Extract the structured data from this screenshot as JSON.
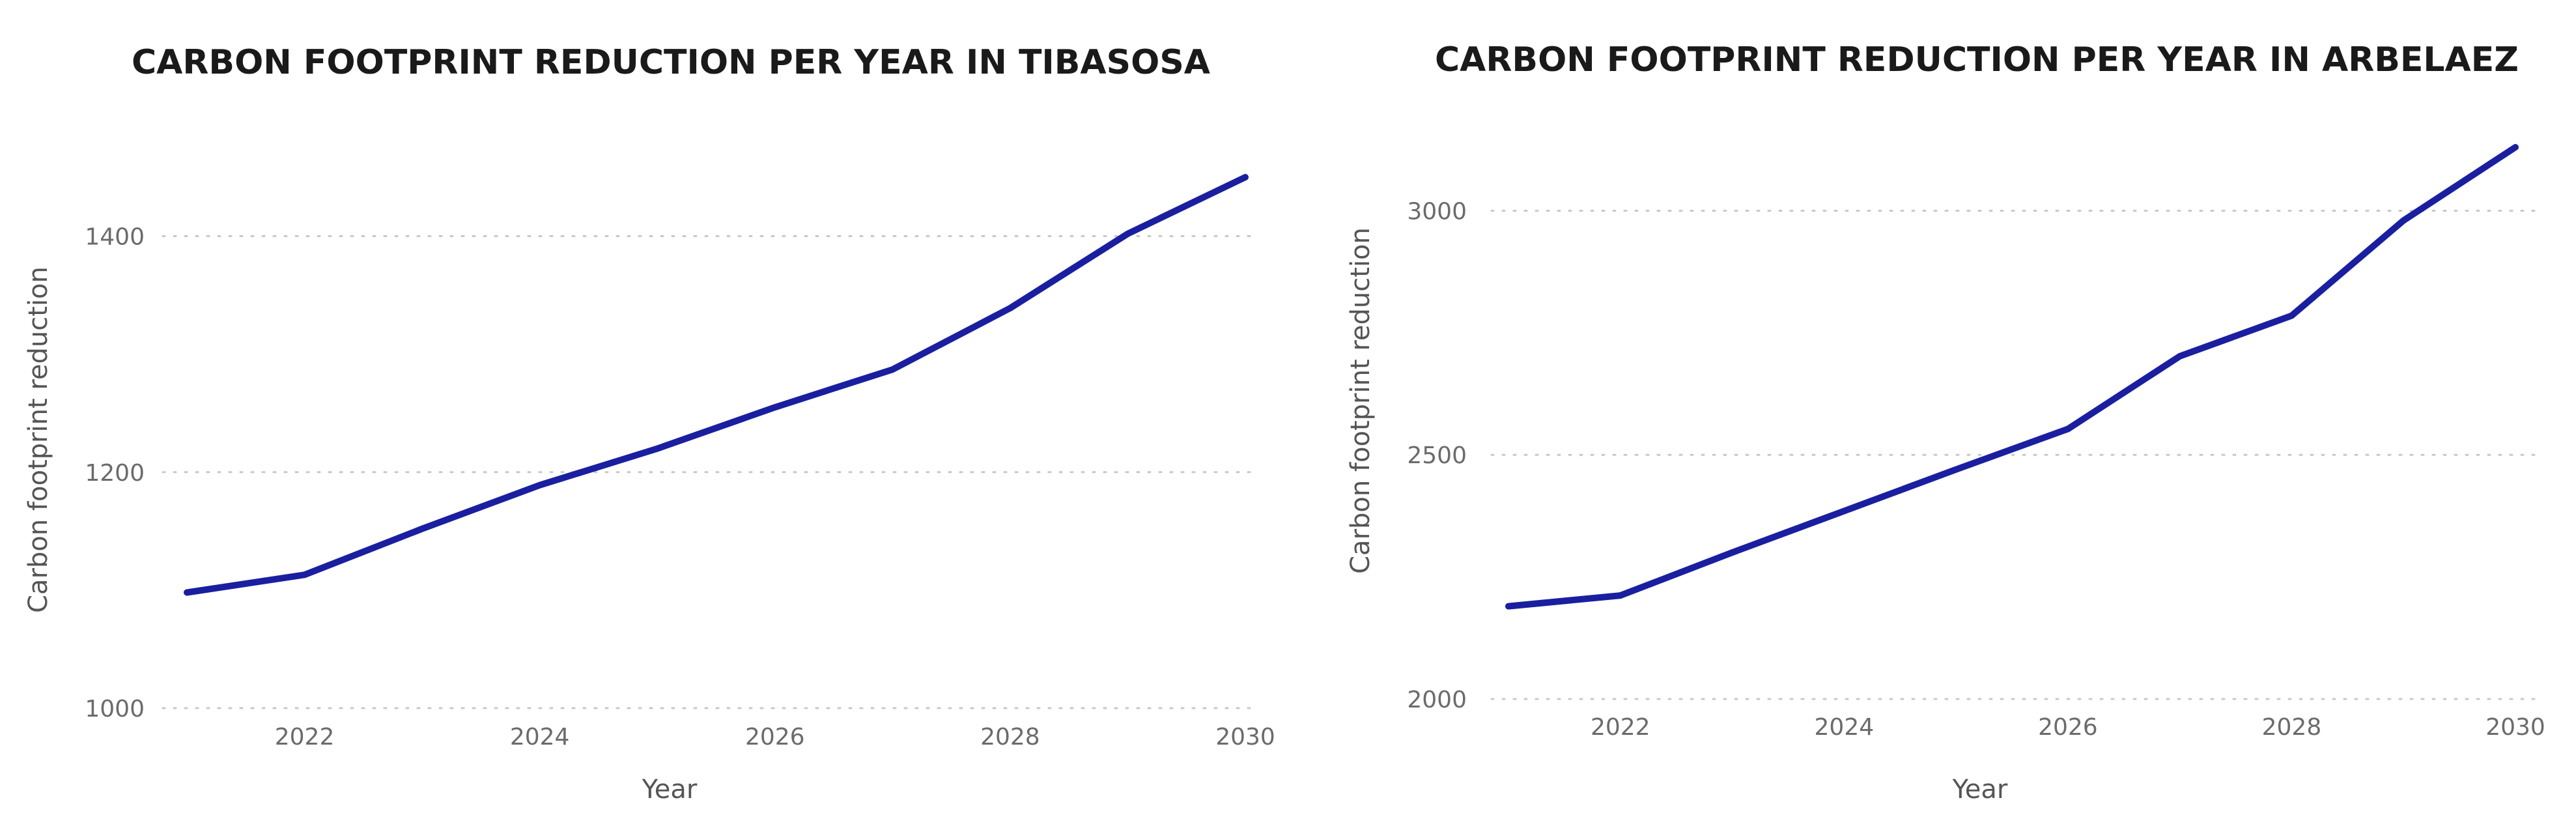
{
  "colors": {
    "series": "#1a1fa0",
    "grid": "#c8c8c8"
  },
  "chart_data": [
    {
      "type": "line",
      "title": "CARBON FOOTPRINT REDUCTION PER YEAR IN TIBASOSA",
      "xlabel": "Year",
      "ylabel": "Carbon footprint reduction",
      "x": [
        2021,
        2022,
        2023,
        2024,
        2025,
        2026,
        2027,
        2028,
        2029,
        2030
      ],
      "values": [
        1098,
        1113,
        1152,
        1189,
        1220,
        1255,
        1287,
        1339,
        1402,
        1450
      ],
      "xlim": [
        2021,
        2030
      ],
      "ylim": [
        1000,
        1450
      ],
      "xticks": [
        2022,
        2024,
        2026,
        2028,
        2030
      ],
      "yticks": [
        1000,
        1200,
        1400
      ],
      "grid": "horizontal-dotted",
      "legend": "none"
    },
    {
      "type": "line",
      "title": "CARBON FOOTPRINT REDUCTION PER YEAR IN ARBELAEZ",
      "xlabel": "Year",
      "ylabel": "Carbon footprint reduction",
      "x": [
        2021,
        2022,
        2023,
        2024,
        2025,
        2026,
        2027,
        2028,
        2029,
        2030
      ],
      "values": [
        2190,
        2212,
        2300,
        2385,
        2470,
        2553,
        2702,
        2785,
        2980,
        3130
      ],
      "xlim": [
        2021,
        2030
      ],
      "ylim": [
        2000,
        3130
      ],
      "xticks": [
        2022,
        2024,
        2026,
        2028,
        2030
      ],
      "yticks": [
        2000,
        2500,
        3000
      ],
      "grid": "horizontal-dotted",
      "legend": "none"
    }
  ]
}
